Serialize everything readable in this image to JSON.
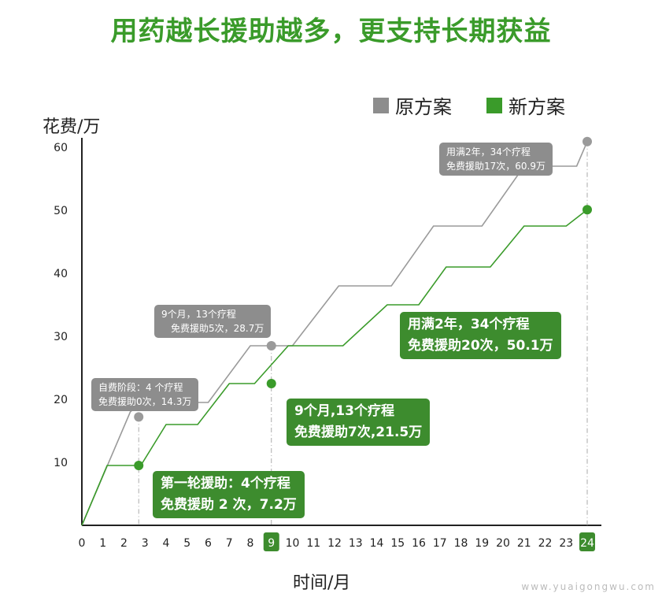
{
  "title": "用药越长援助越多，更支持长期获益",
  "legend": [
    {
      "label": "原方案",
      "color": "#8d8d8d"
    },
    {
      "label": "新方案",
      "color": "#3a9b2a"
    }
  ],
  "watermark": "www.yuaigongwu.com",
  "chart_data": {
    "type": "line",
    "ylabel": "花费/万",
    "xlabel": "时间/月",
    "xlim": [
      0,
      24
    ],
    "ylim": [
      0,
      60
    ],
    "x_ticks": [
      0,
      1,
      2,
      3,
      4,
      5,
      6,
      7,
      8,
      9,
      10,
      11,
      12,
      13,
      14,
      15,
      16,
      17,
      18,
      19,
      20,
      21,
      22,
      23,
      24
    ],
    "y_ticks": [
      10,
      20,
      30,
      40,
      50,
      60
    ],
    "highlighted_x_ticks": [
      9,
      24
    ],
    "series": [
      {
        "name": "原方案",
        "color": "#9a9a9a",
        "points": [
          [
            0,
            0
          ],
          [
            2.3,
            18
          ],
          [
            2.8,
            19.5
          ],
          [
            6,
            19.5
          ],
          [
            8,
            28.5
          ],
          [
            10,
            28.5
          ],
          [
            12.2,
            38
          ],
          [
            14.7,
            38
          ],
          [
            16.7,
            47.5
          ],
          [
            19,
            47.5
          ],
          [
            21,
            57
          ],
          [
            23.5,
            57
          ],
          [
            24,
            60.9
          ]
        ],
        "markers": [
          {
            "x": 2.7,
            "y": 17.2,
            "label": [
              "自费阶段：4 个疗程",
              "免费援助0次，14.3万"
            ]
          },
          {
            "x": 9,
            "y": 28.5,
            "label": [
              "9个月，13个疗程",
              "免费援助5次，28.7万"
            ]
          },
          {
            "x": 24,
            "y": 60.9,
            "label": [
              "用满2年，34个疗程",
              "免费援助17次，60.9万"
            ]
          }
        ]
      },
      {
        "name": "新方案",
        "color": "#3a9b2a",
        "points": [
          [
            0,
            0
          ],
          [
            1.2,
            9.5
          ],
          [
            2.8,
            9.5
          ],
          [
            4,
            16
          ],
          [
            5.5,
            16
          ],
          [
            7,
            22.5
          ],
          [
            8.2,
            22.5
          ],
          [
            9.8,
            28.5
          ],
          [
            12.4,
            28.5
          ],
          [
            14.5,
            35
          ],
          [
            16,
            35
          ],
          [
            17.3,
            41
          ],
          [
            19.4,
            41
          ],
          [
            21,
            47.5
          ],
          [
            23,
            47.5
          ],
          [
            24,
            50.1
          ]
        ],
        "markers": [
          {
            "x": 2.7,
            "y": 9.5,
            "label": [
              "第一轮援助：4个疗程",
              "免费援助 2 次，7.2万"
            ]
          },
          {
            "x": 9,
            "y": 22.5,
            "label": [
              "9个月,13个疗程",
              "免费援助7次,21.5万"
            ]
          },
          {
            "x": 24,
            "y": 50.1,
            "label": [
              "用满2年，34个疗程",
              "免费援助20次，50.1万"
            ]
          }
        ]
      }
    ]
  }
}
